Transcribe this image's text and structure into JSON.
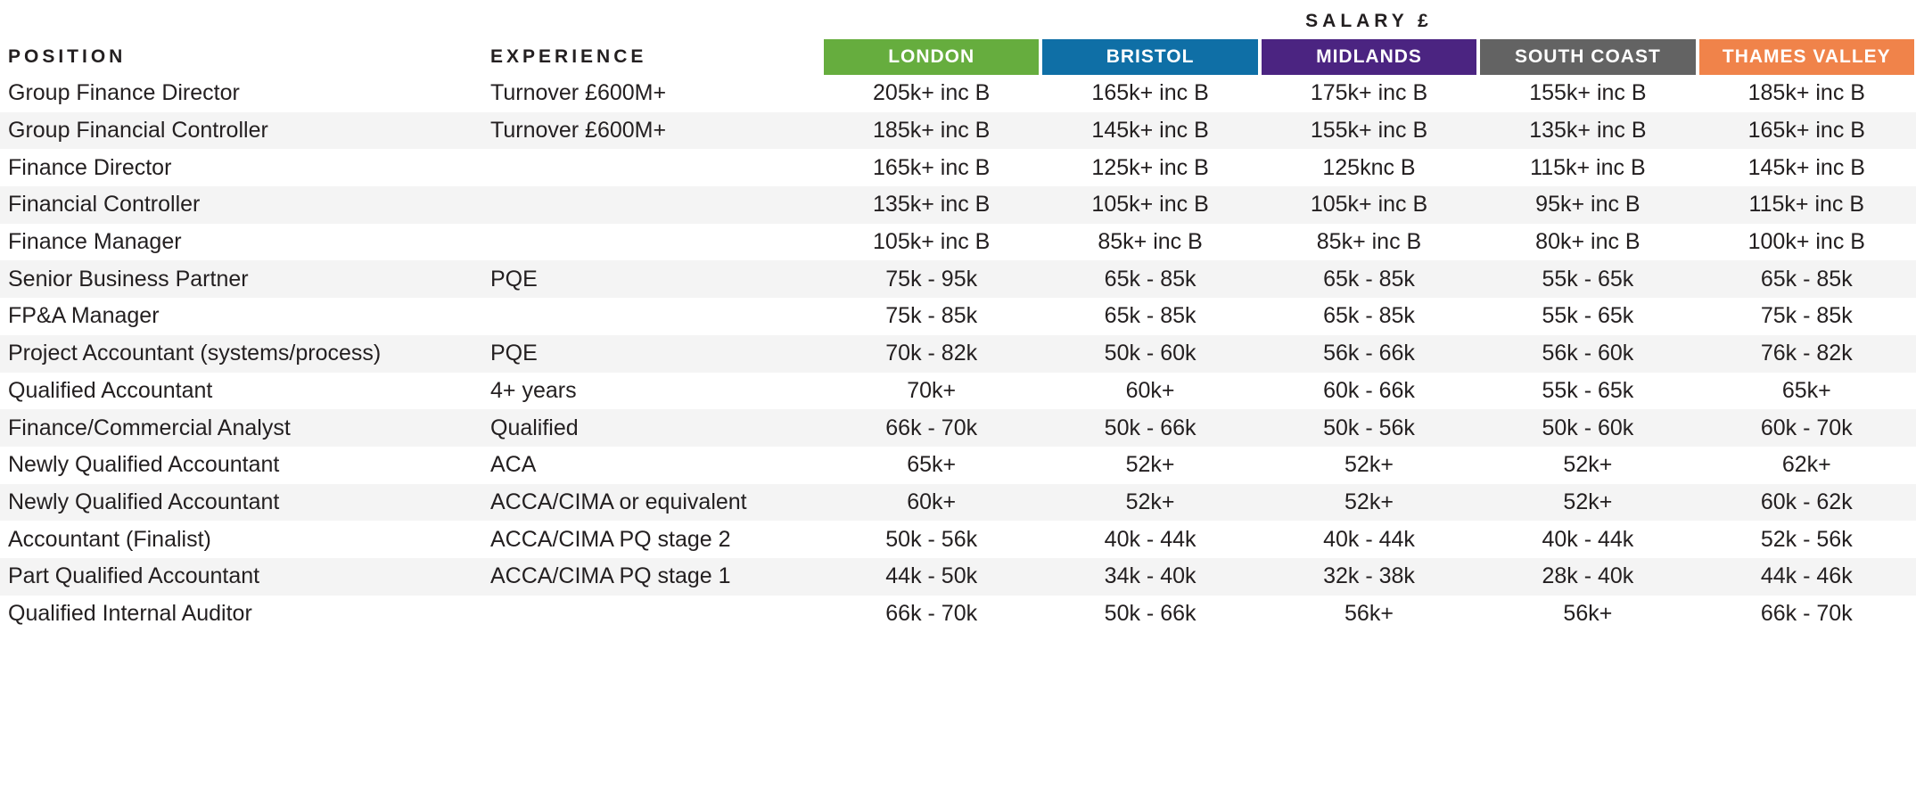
{
  "header": {
    "salary_title": "SALARY £",
    "position_label": "POSITION",
    "experience_label": "EXPERIENCE",
    "regions": [
      {
        "label": "LONDON",
        "color": "#66ad3e"
      },
      {
        "label": "BRISTOL",
        "color": "#0f6fa6"
      },
      {
        "label": "MIDLANDS",
        "color": "#4b2481"
      },
      {
        "label": "SOUTH COAST",
        "color": "#636363"
      },
      {
        "label": "THAMES VALLEY",
        "color": "#f0834a"
      }
    ],
    "stripe_color": "#f4f4f4",
    "text_color": "#231f20"
  },
  "table": {
    "rows": [
      {
        "position": "Group Finance Director",
        "experience": "Turnover £600M+",
        "salaries": [
          "205k+ inc B",
          "165k+ inc B",
          "175k+ inc B",
          "155k+ inc B",
          "185k+ inc B"
        ]
      },
      {
        "position": "Group Financial Controller",
        "experience": "Turnover £600M+",
        "salaries": [
          "185k+ inc B",
          "145k+ inc B",
          "155k+ inc B",
          "135k+ inc B",
          "165k+ inc B"
        ]
      },
      {
        "position": "Finance Director",
        "experience": "",
        "salaries": [
          "165k+ inc B",
          "125k+ inc B",
          "125knc B",
          "115k+ inc B",
          "145k+ inc B"
        ]
      },
      {
        "position": "Financial Controller",
        "experience": "",
        "salaries": [
          "135k+ inc B",
          "105k+ inc B",
          "105k+ inc B",
          "95k+ inc B",
          "115k+ inc B"
        ]
      },
      {
        "position": "Finance Manager",
        "experience": "",
        "salaries": [
          "105k+ inc B",
          "85k+ inc B",
          "85k+ inc B",
          "80k+ inc B",
          "100k+ inc B"
        ]
      },
      {
        "position": "Senior Business Partner",
        "experience": "PQE",
        "salaries": [
          "75k - 95k",
          "65k - 85k",
          "65k - 85k",
          "55k - 65k",
          "65k - 85k"
        ]
      },
      {
        "position": "FP&A Manager",
        "experience": "",
        "salaries": [
          "75k - 85k",
          "65k - 85k",
          "65k - 85k",
          "55k - 65k",
          "75k - 85k"
        ]
      },
      {
        "position": "Project Accountant (systems/process)",
        "experience": "PQE",
        "salaries": [
          "70k - 82k",
          "50k - 60k",
          "56k - 66k",
          "56k - 60k",
          "76k - 82k"
        ]
      },
      {
        "position": "Qualified Accountant",
        "experience": "4+ years",
        "salaries": [
          "70k+",
          "60k+",
          "60k - 66k",
          "55k - 65k",
          "65k+"
        ]
      },
      {
        "position": "Finance/Commercial Analyst",
        "experience": "Qualified",
        "salaries": [
          "66k - 70k",
          "50k - 66k",
          "50k - 56k",
          "50k - 60k",
          "60k - 70k"
        ]
      },
      {
        "position": "Newly Qualified Accountant",
        "experience": "ACA",
        "salaries": [
          "65k+",
          "52k+",
          "52k+",
          "52k+",
          "62k+"
        ]
      },
      {
        "position": "Newly Qualified Accountant",
        "experience": "ACCA/CIMA or equivalent",
        "salaries": [
          "60k+",
          "52k+",
          "52k+",
          "52k+",
          "60k - 62k"
        ]
      },
      {
        "position": "Accountant (Finalist)",
        "experience": "ACCA/CIMA PQ stage 2",
        "salaries": [
          "50k - 56k",
          "40k - 44k",
          "40k - 44k",
          "40k - 44k",
          "52k - 56k"
        ]
      },
      {
        "position": "Part Qualified Accountant",
        "experience": "ACCA/CIMA PQ stage 1",
        "salaries": [
          "44k - 50k",
          "34k - 40k",
          "32k - 38k",
          "28k - 40k",
          "44k - 46k"
        ]
      },
      {
        "position": "Qualified Internal Auditor",
        "experience": "",
        "salaries": [
          "66k - 70k",
          "50k - 66k",
          "56k+",
          "56k+",
          "66k - 70k"
        ]
      }
    ]
  }
}
